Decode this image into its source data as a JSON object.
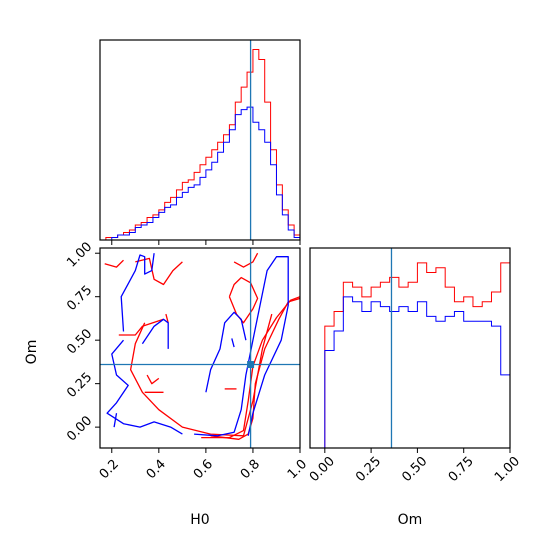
{
  "chart_data": {
    "type": "corner",
    "parameters": [
      "H0",
      "Om"
    ],
    "truths": {
      "H0": 0.79,
      "Om": 0.36
    },
    "colors": {
      "series_a": "#ff0000",
      "series_b": "#0000ff",
      "truth": "#1f77b4"
    },
    "histograms": {
      "H0": {
        "x_range": [
          0.15,
          1.0
        ],
        "bins": [
          0.15,
          0.175,
          0.2,
          0.225,
          0.25,
          0.275,
          0.3,
          0.325,
          0.35,
          0.375,
          0.4,
          0.425,
          0.45,
          0.475,
          0.5,
          0.525,
          0.55,
          0.575,
          0.6,
          0.625,
          0.65,
          0.675,
          0.7,
          0.725,
          0.75,
          0.775,
          0.8,
          0.825,
          0.85,
          0.875,
          0.9,
          0.925,
          0.95,
          0.975,
          1.0
        ],
        "series": [
          {
            "color": "#ff0000",
            "values": [
              0,
              1,
              1,
              2,
              3,
              4,
              6,
              7,
              9,
              10,
              12,
              15,
              17,
              20,
              23,
              24,
              27,
              30,
              33,
              36,
              39,
              42,
              46,
              55,
              61,
              67,
              76,
              72,
              55,
              36,
              22,
              12,
              6,
              2
            ]
          },
          {
            "color": "#0000ff",
            "values": [
              0,
              0,
              1,
              2,
              2,
              3,
              5,
              6,
              7,
              9,
              11,
              13,
              14,
              17,
              19,
              21,
              22,
              25,
              28,
              31,
              35,
              39,
              44,
              50,
              52,
              53,
              47,
              44,
              39,
              30,
              18,
              10,
              4,
              1
            ]
          }
        ]
      },
      "Om": {
        "x_range": [
          -0.08,
          1.0
        ],
        "bins": [
          0.0,
          0.05,
          0.1,
          0.15,
          0.2,
          0.25,
          0.3,
          0.35,
          0.4,
          0.45,
          0.5,
          0.55,
          0.6,
          0.65,
          0.7,
          0.75,
          0.8,
          0.85,
          0.9,
          0.95,
          1.0
        ],
        "series": [
          {
            "color": "#ff0000",
            "values": [
              25,
              28,
              34,
              33,
              31,
              33,
              34,
              35,
              33,
              34,
              38,
              36,
              37,
              33,
              30,
              31,
              29,
              30,
              32,
              38
            ]
          },
          {
            "color": "#0000ff",
            "values": [
              20,
              24,
              31,
              30,
              28,
              30,
              29,
              28,
              29,
              28,
              30,
              27,
              26,
              27,
              28,
              26,
              26,
              26,
              25,
              15
            ]
          }
        ]
      }
    },
    "joint": {
      "x": "H0",
      "y": "Om",
      "x_range": [
        0.15,
        1.0
      ],
      "y_range": [
        -0.12,
        1.03
      ],
      "contours": [
        {
          "color": "#ff0000",
          "points": [
            [
              0.62,
              -0.05
            ],
            [
              0.74,
              -0.07
            ],
            [
              0.78,
              -0.04
            ],
            [
              0.8,
              0.05
            ],
            [
              0.81,
              0.25
            ],
            [
              0.85,
              0.45
            ],
            [
              0.91,
              0.62
            ],
            [
              0.95,
              0.72
            ],
            [
              1.0,
              0.74
            ]
          ]
        },
        {
          "color": "#ff0000",
          "points": [
            [
              0.58,
              -0.06
            ],
            [
              0.7,
              -0.06
            ],
            [
              0.76,
              -0.02
            ],
            [
              0.78,
              0.15
            ],
            [
              0.8,
              0.35
            ],
            [
              0.84,
              0.5
            ],
            [
              0.9,
              0.63
            ],
            [
              0.96,
              0.73
            ],
            [
              1.0,
              0.75
            ]
          ]
        },
        {
          "color": "#ff0000",
          "points": [
            [
              0.23,
              0.53
            ],
            [
              0.3,
              0.53
            ],
            [
              0.33,
              0.58
            ],
            [
              0.42,
              0.62
            ]
          ]
        },
        {
          "color": "#ff0000",
          "points": [
            [
              0.3,
              0.95
            ],
            [
              0.36,
              0.97
            ],
            [
              0.38,
              0.85
            ],
            [
              0.42,
              0.82
            ],
            [
              0.46,
              0.9
            ],
            [
              0.5,
              0.95
            ]
          ]
        },
        {
          "color": "#ff0000",
          "points": [
            [
              0.34,
              0.6
            ],
            [
              0.3,
              0.48
            ],
            [
              0.28,
              0.33
            ],
            [
              0.33,
              0.2
            ],
            [
              0.4,
              0.1
            ],
            [
              0.5,
              0.0
            ],
            [
              0.62,
              -0.04
            ],
            [
              0.76,
              -0.05
            ],
            [
              0.8,
              0.15
            ],
            [
              0.84,
              0.45
            ],
            [
              0.88,
              0.65
            ]
          ]
        },
        {
          "color": "#ff0000",
          "points": [
            [
              0.7,
              0.75
            ],
            [
              0.73,
              0.65
            ],
            [
              0.76,
              0.6
            ],
            [
              0.8,
              0.68
            ],
            [
              0.82,
              0.74
            ],
            [
              0.79,
              0.83
            ],
            [
              0.75,
              0.86
            ],
            [
              0.72,
              0.82
            ],
            [
              0.7,
              0.75
            ]
          ]
        },
        {
          "color": "#ff0000",
          "points": [
            [
              0.72,
              0.95
            ],
            [
              0.76,
              0.92
            ],
            [
              0.8,
              0.95
            ],
            [
              0.82,
              1.0
            ]
          ]
        },
        {
          "color": "#ff0000",
          "points": [
            [
              0.68,
              0.22
            ],
            [
              0.73,
              0.22
            ]
          ]
        },
        {
          "color": "#ff0000",
          "points": [
            [
              0.35,
              0.3
            ],
            [
              0.37,
              0.25
            ],
            [
              0.4,
              0.28
            ]
          ]
        },
        {
          "color": "#ff0000",
          "points": [
            [
              0.34,
              0.2
            ],
            [
              0.42,
              0.2
            ]
          ]
        },
        {
          "color": "#ff0000",
          "points": [
            [
              0.43,
              0.65
            ],
            [
              0.44,
              0.6
            ]
          ]
        },
        {
          "color": "#ff0000",
          "points": [
            [
              0.17,
              0.94
            ],
            [
              0.22,
              0.92
            ],
            [
              0.25,
              0.96
            ]
          ]
        },
        {
          "color": "#0000ff",
          "points": [
            [
              0.55,
              -0.04
            ],
            [
              0.65,
              -0.05
            ],
            [
              0.72,
              -0.03
            ],
            [
              0.75,
              0.1
            ],
            [
              0.77,
              0.3
            ],
            [
              0.8,
              0.5
            ],
            [
              0.83,
              0.7
            ],
            [
              0.86,
              0.9
            ],
            [
              0.9,
              0.98
            ],
            [
              0.95,
              0.98
            ],
            [
              0.95,
              0.7
            ],
            [
              0.92,
              0.5
            ],
            [
              0.85,
              0.3
            ],
            [
              0.8,
              0.08
            ],
            [
              0.78,
              -0.05
            ]
          ]
        },
        {
          "color": "#0000ff",
          "points": [
            [
              0.33,
              0.48
            ],
            [
              0.38,
              0.58
            ],
            [
              0.42,
              0.62
            ],
            [
              0.44,
              0.6
            ],
            [
              0.44,
              0.45
            ]
          ]
        },
        {
          "color": "#0000ff",
          "points": [
            [
              0.25,
              0.5
            ],
            [
              0.2,
              0.42
            ],
            [
              0.22,
              0.3
            ],
            [
              0.27,
              0.24
            ],
            [
              0.22,
              0.14
            ],
            [
              0.18,
              0.08
            ],
            [
              0.25,
              0.02
            ],
            [
              0.32,
              0.0
            ],
            [
              0.38,
              0.03
            ],
            [
              0.45,
              0.0
            ],
            [
              0.5,
              -0.04
            ]
          ]
        },
        {
          "color": "#0000ff",
          "points": [
            [
              0.25,
              0.55
            ],
            [
              0.24,
              0.75
            ],
            [
              0.28,
              0.85
            ],
            [
              0.3,
              0.9
            ],
            [
              0.32,
              0.99
            ],
            [
              0.34,
              0.98
            ],
            [
              0.34,
              0.88
            ],
            [
              0.37,
              0.9
            ],
            [
              0.38,
              1.0
            ]
          ]
        },
        {
          "color": "#0000ff",
          "points": [
            [
              0.21,
              0.0
            ],
            [
              0.22,
              0.08
            ]
          ]
        },
        {
          "color": "#0000ff",
          "points": [
            [
              0.6,
              0.2
            ],
            [
              0.62,
              0.33
            ],
            [
              0.66,
              0.45
            ],
            [
              0.68,
              0.6
            ],
            [
              0.72,
              0.66
            ],
            [
              0.75,
              0.62
            ],
            [
              0.77,
              0.5
            ]
          ]
        },
        {
          "color": "#0000ff",
          "points": [
            [
              0.71,
              0.51
            ],
            [
              0.72,
              0.46
            ]
          ]
        }
      ]
    },
    "axes": {
      "H0": {
        "label": "H0",
        "ticks": [
          0.2,
          0.4,
          0.6,
          0.8,
          1.0
        ],
        "tick_labels": [
          "0.2",
          "0.4",
          "0.6",
          "0.8",
          "1.0"
        ]
      },
      "Om": {
        "label": "Om",
        "ticks": [
          0.0,
          0.25,
          0.5,
          0.75,
          1.0
        ],
        "tick_labels": [
          "0.00",
          "0.25",
          "0.50",
          "0.75",
          "1.00"
        ]
      }
    }
  }
}
